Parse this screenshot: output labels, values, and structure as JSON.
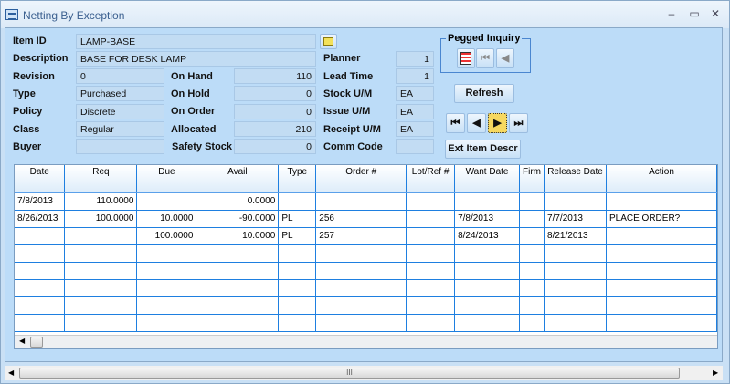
{
  "window": {
    "title": "Netting By Exception",
    "minimize": "–",
    "maximize": "▭",
    "close": "✕"
  },
  "form": {
    "item_id": {
      "label": "Item ID",
      "value": "LAMP-BASE"
    },
    "description": {
      "label": "Description",
      "value": "BASE FOR DESK LAMP"
    },
    "revision": {
      "label": "Revision",
      "value": "0"
    },
    "type": {
      "label": "Type",
      "value": "Purchased"
    },
    "policy": {
      "label": "Policy",
      "value": "Discrete"
    },
    "class": {
      "label": "Class",
      "value": "Regular"
    },
    "buyer": {
      "label": "Buyer",
      "value": ""
    },
    "on_hand": {
      "label": "On Hand",
      "value": "110"
    },
    "on_hold": {
      "label": "On Hold",
      "value": "0"
    },
    "on_order": {
      "label": "On Order",
      "value": "0"
    },
    "allocated": {
      "label": "Allocated",
      "value": "210"
    },
    "safety_stock": {
      "label": "Safety Stock",
      "value": "0"
    },
    "planner": {
      "label": "Planner",
      "value": "1"
    },
    "lead_time": {
      "label": "Lead Time",
      "value": "1"
    },
    "stock_um": {
      "label": "Stock U/M",
      "value": "EA"
    },
    "issue_um": {
      "label": "Issue U/M",
      "value": "EA"
    },
    "receipt_um": {
      "label": "Receipt U/M",
      "value": "EA"
    },
    "comm_code": {
      "label": "Comm Code",
      "value": ""
    }
  },
  "pegged": {
    "label": "Pegged Inquiry"
  },
  "buttons": {
    "refresh": "Refresh",
    "ext_item_descr": "Ext Item Descr"
  },
  "grid": {
    "columns": [
      "Date",
      "Req",
      "Due",
      "Avail",
      "Type",
      "Order #",
      "Lot/Ref #",
      "Want Date",
      "Firm",
      "Release Date",
      "Action"
    ],
    "rows": [
      [
        "7/8/2013",
        "110.0000",
        "",
        "0.0000",
        "",
        "",
        "",
        "",
        "",
        "",
        ""
      ],
      [
        "8/26/2013",
        "100.0000",
        "10.0000",
        "-90.0000",
        "PL",
        "256",
        "",
        "7/8/2013",
        "",
        "7/7/2013",
        "PLACE ORDER?"
      ],
      [
        "",
        "",
        "100.0000",
        "10.0000",
        "PL",
        "257",
        "",
        "8/24/2013",
        "",
        "8/21/2013",
        ""
      ],
      [
        "",
        "",
        "",
        "",
        "",
        "",
        "",
        "",
        "",
        "",
        ""
      ],
      [
        "",
        "",
        "",
        "",
        "",
        "",
        "",
        "",
        "",
        "",
        ""
      ],
      [
        "",
        "",
        "",
        "",
        "",
        "",
        "",
        "",
        "",
        "",
        ""
      ],
      [
        "",
        "",
        "",
        "",
        "",
        "",
        "",
        "",
        "",
        "",
        ""
      ],
      [
        "",
        "",
        "",
        "",
        "",
        "",
        "",
        "",
        "",
        "",
        ""
      ]
    ]
  },
  "scrollbar": {
    "grip": "III"
  }
}
